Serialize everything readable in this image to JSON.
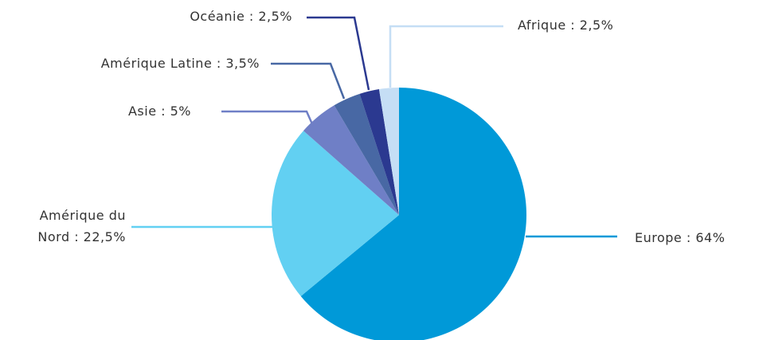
{
  "chart_data": {
    "type": "pie",
    "values": [
      64,
      22.5,
      5,
      3.5,
      2.5,
      2.5
    ],
    "value_labels": [
      "Europe : 64%",
      "Amérique du\nNord : 22,5%",
      "Asie : 5%",
      "Amérique Latine : 3,5%",
      "Océanie : 2,5%",
      "Afrique : 2,5%"
    ],
    "colors": [
      "#0099d8",
      "#62d0f2",
      "#6f7fc6",
      "#4868a4",
      "#2b3990",
      "#c5def5"
    ]
  }
}
